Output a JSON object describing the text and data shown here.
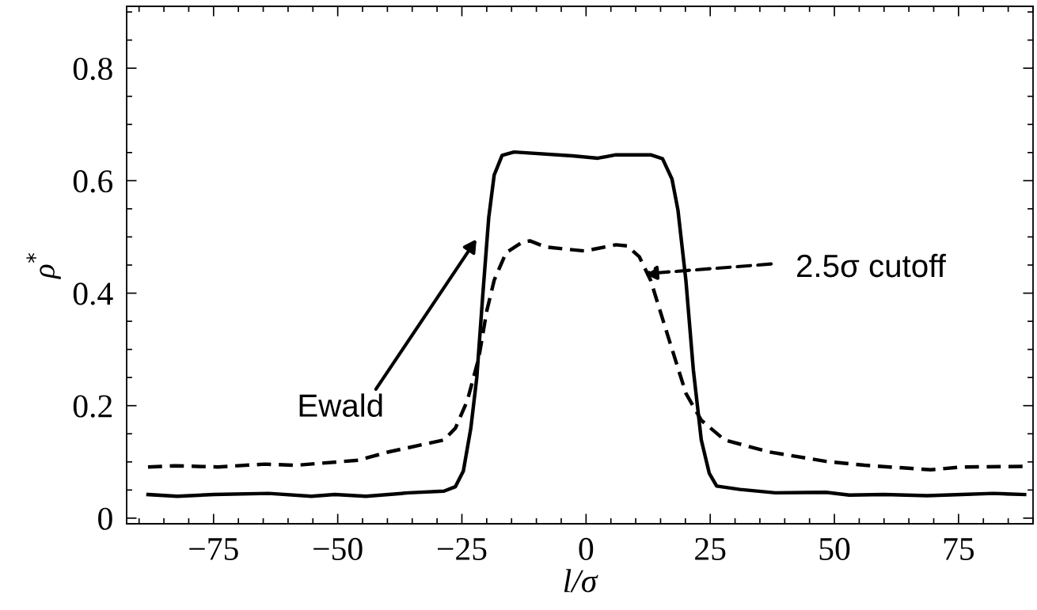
{
  "chart_data": {
    "type": "line",
    "xlabel": "l/σ",
    "ylabel": "ρ$^{*}$",
    "xlim": [
      -92.5,
      90
    ],
    "ylim": [
      -0.01,
      0.91
    ],
    "xticks": [
      {
        "value": -90,
        "label": null
      },
      {
        "value": -85,
        "label": null
      },
      {
        "value": -80,
        "label": null
      },
      {
        "value": -75,
        "label": "−75"
      },
      {
        "value": -70,
        "label": null
      },
      {
        "value": -65,
        "label": null
      },
      {
        "value": -60,
        "label": null
      },
      {
        "value": -55,
        "label": null
      },
      {
        "value": -50,
        "label": "−50"
      },
      {
        "value": -45,
        "label": null
      },
      {
        "value": -40,
        "label": null
      },
      {
        "value": -35,
        "label": null
      },
      {
        "value": -30,
        "label": null
      },
      {
        "value": -25,
        "label": "−25"
      },
      {
        "value": -20,
        "label": null
      },
      {
        "value": -15,
        "label": null
      },
      {
        "value": -10,
        "label": null
      },
      {
        "value": -5,
        "label": null
      },
      0,
      {
        "value": 5,
        "label": null
      },
      {
        "value": 10,
        "label": null
      },
      {
        "value": 15,
        "label": null
      },
      {
        "value": 20,
        "label": null
      },
      25,
      {
        "value": 30,
        "label": null
      },
      {
        "value": 35,
        "label": null
      },
      {
        "value": 40,
        "label": null
      },
      {
        "value": 45,
        "label": null
      },
      50,
      {
        "value": 55,
        "label": null
      },
      {
        "value": 60,
        "label": null
      },
      {
        "value": 65,
        "label": null
      },
      {
        "value": 70,
        "label": null
      },
      75,
      {
        "value": 80,
        "label": null
      },
      {
        "value": 85,
        "label": null
      },
      {
        "value": 90,
        "label": null
      }
    ],
    "yticks": [
      0,
      {
        "value": 0.05,
        "label": null
      },
      {
        "value": 0.1,
        "label": null
      },
      {
        "value": 0.15,
        "label": null
      },
      0.2,
      {
        "value": 0.25,
        "label": null
      },
      {
        "value": 0.3,
        "label": null
      },
      {
        "value": 0.35,
        "label": null
      },
      0.4,
      {
        "value": 0.45,
        "label": null
      },
      {
        "value": 0.5,
        "label": null
      },
      {
        "value": 0.55,
        "label": null
      },
      0.6,
      {
        "value": 0.65,
        "label": null
      },
      {
        "value": 0.7,
        "label": null
      },
      {
        "value": 0.75,
        "label": null
      },
      0.8,
      {
        "value": 0.85,
        "label": null
      },
      {
        "value": 0.9,
        "label": null
      }
    ],
    "grid": false,
    "legend": false,
    "marker": "none",
    "series": [
      {
        "color": "#000000",
        "line_style": "solid",
        "x": [
          -88.2,
          -82.3,
          -74.9,
          -63.9,
          -55.3,
          -50.6,
          -44.3,
          -35.7,
          -28.6,
          -26.3,
          -24.7,
          -23.2,
          -22.0,
          -20.8,
          -19.6,
          -18.5,
          -16.9,
          -14.5,
          -2.7,
          2.4,
          6.0,
          13.0,
          15.4,
          17.3,
          18.5,
          20.1,
          21.6,
          23.2,
          24.8,
          26.3,
          31.0,
          38.1,
          48.3,
          53.0,
          60.0,
          68.7,
          75.7,
          82.0,
          88.3
        ],
        "values": [
          0.042,
          0.039,
          0.042,
          0.044,
          0.039,
          0.042,
          0.039,
          0.045,
          0.048,
          0.056,
          0.084,
          0.16,
          0.25,
          0.396,
          0.534,
          0.61,
          0.645,
          0.651,
          0.644,
          0.64,
          0.646,
          0.646,
          0.639,
          0.603,
          0.548,
          0.423,
          0.264,
          0.139,
          0.08,
          0.057,
          0.051,
          0.045,
          0.046,
          0.041,
          0.042,
          0.04,
          0.042,
          0.044,
          0.042
        ]
      },
      {
        "color": "#000000",
        "line_style": "dashed",
        "x": [
          -88.2,
          -82.7,
          -74.1,
          -64.7,
          -58.4,
          -45.9,
          -39.6,
          -28.6,
          -26.3,
          -23.9,
          -21.6,
          -20.0,
          -18.5,
          -16.1,
          -12.8,
          -11.3,
          -8.1,
          -0.3,
          6.0,
          8.3,
          10.7,
          13.0,
          16.9,
          20.1,
          23.2,
          27.9,
          36.7,
          48.3,
          56.1,
          69.4,
          75.7,
          88.3
        ],
        "values": [
          0.091,
          0.093,
          0.091,
          0.096,
          0.094,
          0.103,
          0.118,
          0.139,
          0.16,
          0.209,
          0.285,
          0.368,
          0.423,
          0.472,
          0.491,
          0.493,
          0.482,
          0.475,
          0.486,
          0.484,
          0.465,
          0.423,
          0.312,
          0.222,
          0.174,
          0.139,
          0.118,
          0.101,
          0.094,
          0.086,
          0.091,
          0.092
        ]
      }
    ],
    "annotations": [
      "Ewald",
      "2.5σ cutoff"
    ]
  }
}
